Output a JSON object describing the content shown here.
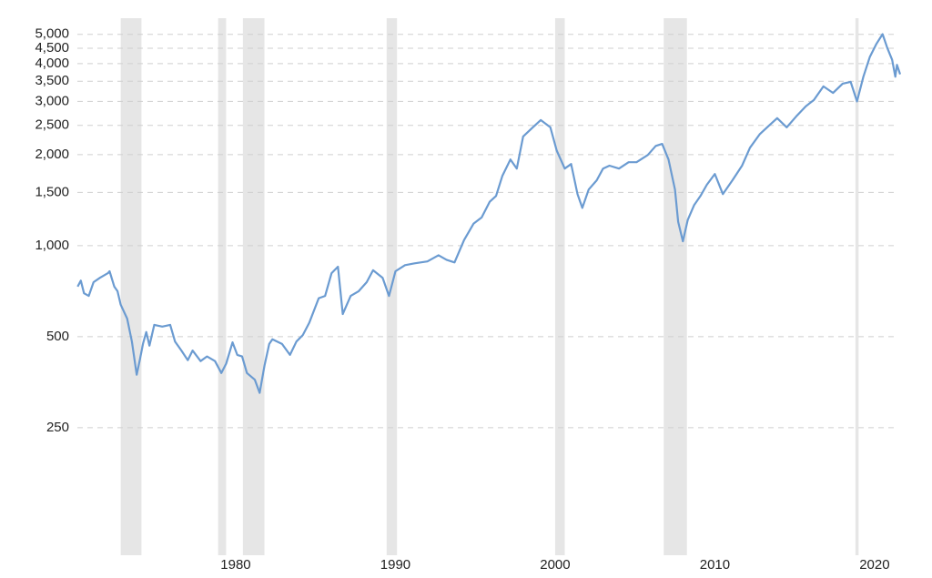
{
  "chart_data": {
    "type": "line",
    "log_scale": true,
    "grid": true,
    "xlim": [
      1970,
      2022
    ],
    "xticks": [
      1980,
      1990,
      2000,
      2010,
      2020
    ],
    "ylim": [
      100,
      5500
    ],
    "yticks": [
      250,
      500,
      {
        "value": 1000,
        "label": "1,000"
      },
      {
        "value": 1500,
        "label": "1,500"
      },
      {
        "value": 2000,
        "label": "2,000"
      },
      {
        "value": 2500,
        "label": "2,500"
      },
      {
        "value": 3000,
        "label": "3,000"
      },
      {
        "value": 3500,
        "label": "3,500"
      },
      {
        "value": 4000,
        "label": "4,000"
      },
      {
        "value": 4500,
        "label": "4,500"
      },
      {
        "value": 5000,
        "label": "5,000"
      }
    ],
    "shaded_periods": [
      [
        1972.8,
        1974.1
      ],
      [
        1978.9,
        1979.4
      ],
      [
        1980.45,
        1981.8
      ],
      [
        1989.45,
        1990.1
      ],
      [
        2000.0,
        2000.6
      ],
      [
        2006.8,
        2008.25
      ],
      [
        2018.8,
        2019.0
      ]
    ],
    "shade_color": "#e6e6e6",
    "x": [
      1970.1,
      1970.3,
      1970.5,
      1970.8,
      1971.1,
      1971.5,
      1972.0,
      1972.1,
      1972.4,
      1972.6,
      1972.8,
      1973.2,
      1973.5,
      1973.8,
      1974.0,
      1974.2,
      1974.4,
      1974.6,
      1974.9,
      1975.4,
      1975.9,
      1976.2,
      1976.6,
      1977.0,
      1977.3,
      1977.8,
      1978.2,
      1978.7,
      1979.1,
      1979.4,
      1979.8,
      1980.1,
      1980.4,
      1980.7,
      1981.2,
      1981.5,
      1981.8,
      1982.1,
      1982.3,
      1982.9,
      1983.4,
      1983.8,
      1984.2,
      1984.6,
      1985.2,
      1985.6,
      1986.0,
      1986.4,
      1986.7,
      1987.2,
      1987.7,
      1988.2,
      1988.6,
      1989.2,
      1989.6,
      1990.0,
      1990.6,
      1991.2,
      1992.0,
      1992.7,
      1993.2,
      1993.7,
      1994.3,
      1994.9,
      1995.4,
      1995.9,
      1996.3,
      1996.7,
      1997.2,
      1997.6,
      1998.0,
      1998.6,
      1999.1,
      1999.7,
      2000.1,
      2000.6,
      2001.0,
      2001.4,
      2001.7,
      2002.1,
      2002.6,
      2003.0,
      2003.4,
      2004.0,
      2004.6,
      2005.1,
      2005.8,
      2006.3,
      2006.7,
      2007.1,
      2007.5,
      2007.7,
      2008.0,
      2008.3,
      2008.7,
      2009.1,
      2009.5,
      2010.0,
      2010.5,
      2011.1,
      2011.7,
      2012.2,
      2012.8,
      2013.4,
      2013.9,
      2014.5,
      2015.1,
      2015.7,
      2016.2,
      2016.8,
      2017.4,
      2018.0,
      2018.5,
      2018.9,
      2019.3,
      2019.7,
      2020.1,
      2020.5,
      2020.8,
      2021.1,
      2021.3,
      2021.4,
      2021.6
    ],
    "series": [
      {
        "color": "#6b9bd1",
        "values": [
          732,
          766,
          696,
          682,
          757,
          783,
          811,
          823,
          732,
          707,
          638,
          574,
          482,
          374,
          420,
          475,
          518,
          467,
          547,
          540,
          547,
          482,
          450,
          418,
          450,
          415,
          430,
          415,
          379,
          407,
          479,
          435,
          430,
          379,
          360,
          326,
          401,
          473,
          490,
          473,
          435,
          482,
          506,
          555,
          670,
          682,
          811,
          852,
          594,
          682,
          707,
          757,
          829,
          783,
          682,
          823,
          862,
          874,
          887,
          930,
          898,
          880,
          1044,
          1183,
          1240,
          1397,
          1460,
          1703,
          1928,
          1799,
          2297,
          2462,
          2603,
          2462,
          2062,
          1799,
          1862,
          1481,
          1333,
          1534,
          1645,
          1799,
          1839,
          1799,
          1888,
          1888,
          1995,
          2138,
          2170,
          1928,
          1534,
          1200,
          1034,
          1216,
          1361,
          1460,
          1590,
          1727,
          1481,
          1645,
          1839,
          2109,
          2334,
          2498,
          2641,
          2462,
          2678,
          2892,
          3031,
          3364,
          3200,
          3435,
          3482,
          3000,
          3622,
          4203,
          4637,
          5008,
          4509,
          4119,
          3622,
          3966,
          3689
        ]
      }
    ]
  }
}
